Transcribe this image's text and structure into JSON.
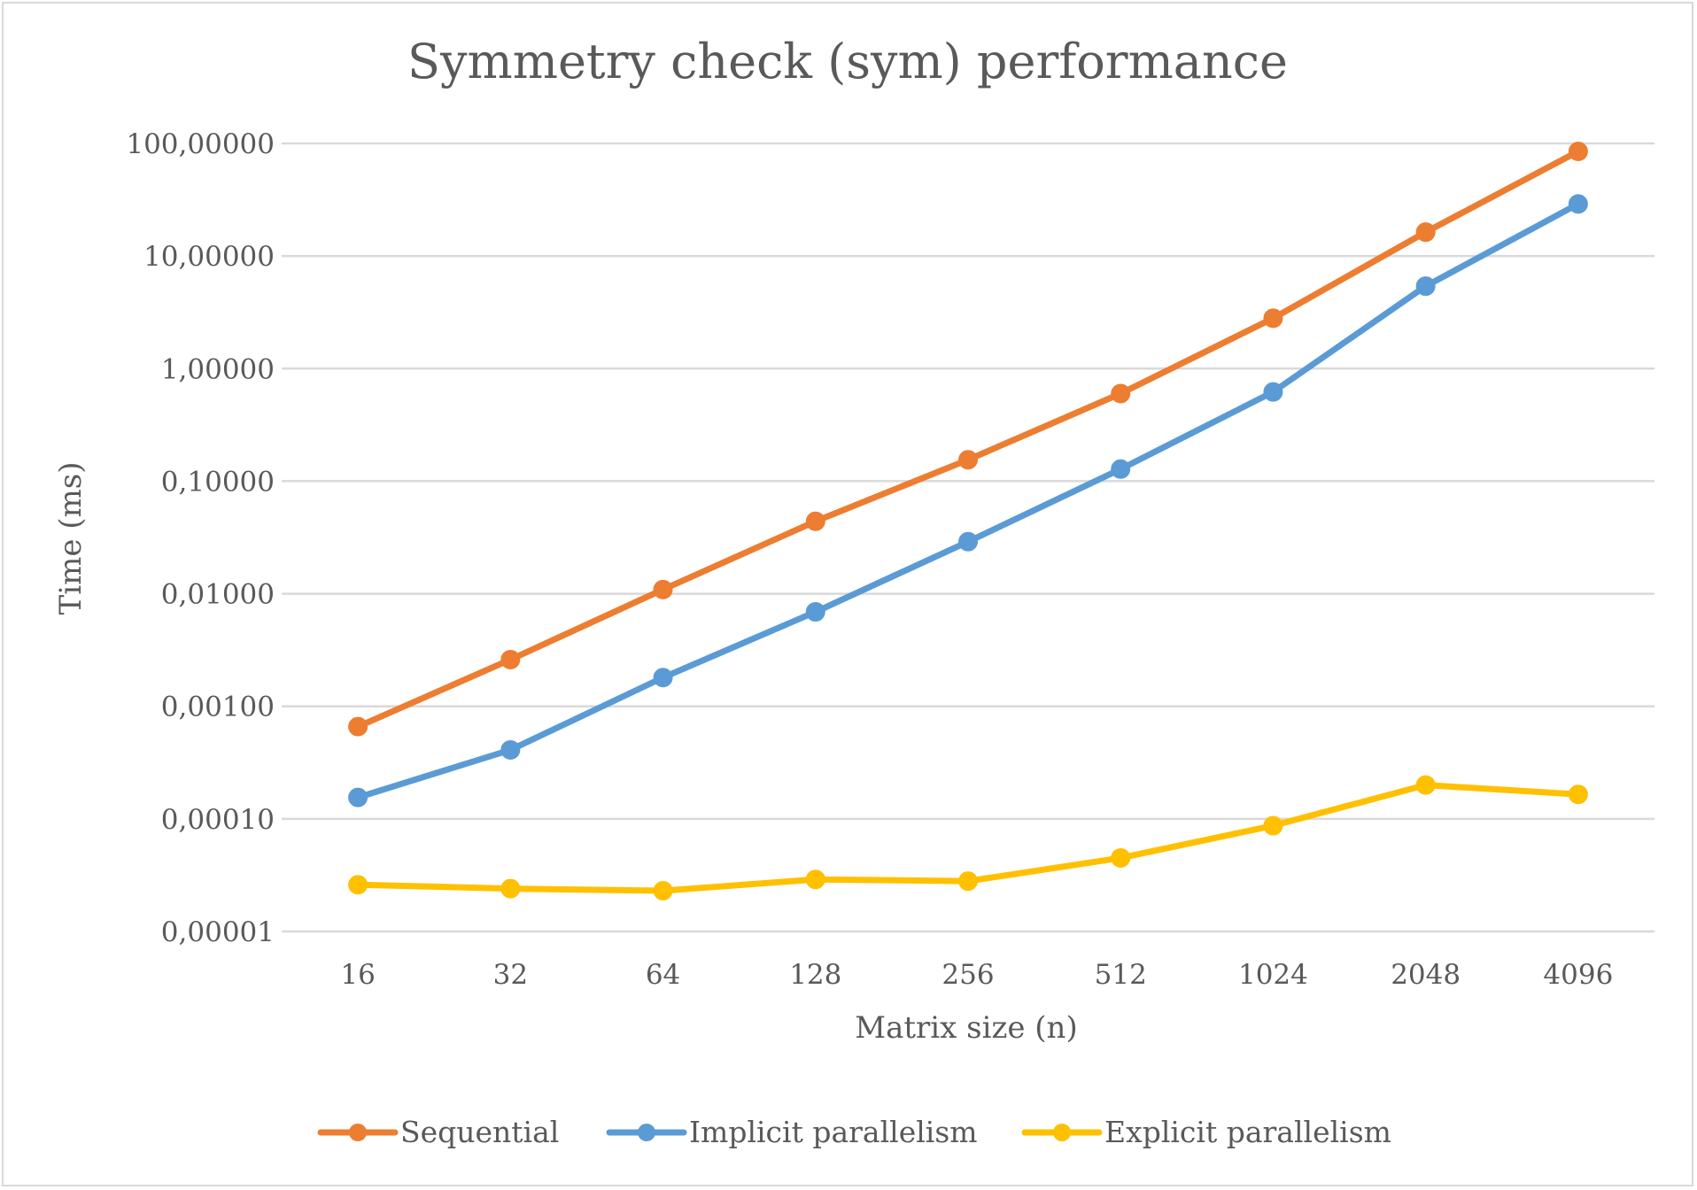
{
  "chart_data": {
    "type": "line",
    "title": "Symmetry check (sym) performance",
    "xlabel": "Matrix size (n)",
    "ylabel": "Time (ms)",
    "yscale": "log",
    "ylim": [
      1e-05,
      100
    ],
    "y_ticks": [
      100,
      10,
      1,
      0.1,
      0.01,
      0.001,
      0.0001,
      1e-05
    ],
    "y_tick_labels": [
      "100,00000",
      "10,00000",
      "1,00000",
      "0,10000",
      "0,01000",
      "0,00100",
      "0,00010",
      "0,00001"
    ],
    "categories": [
      "16",
      "32",
      "64",
      "128",
      "256",
      "512",
      "1024",
      "2048",
      "4096"
    ],
    "grid": true,
    "legend_position": "bottom",
    "series": [
      {
        "name": "Sequential",
        "color": "#ed7d31",
        "values": [
          0.00066,
          0.0026,
          0.0109,
          0.044,
          0.155,
          0.6,
          2.8,
          16.3,
          85
        ]
      },
      {
        "name": "Implicit parallelism",
        "color": "#5b9bd5",
        "values": [
          0.000155,
          0.00041,
          0.0018,
          0.0069,
          0.029,
          0.128,
          0.62,
          5.4,
          29
        ]
      },
      {
        "name": "Explicit parallelism",
        "color": "#ffc000",
        "values": [
          2.6e-05,
          2.4e-05,
          2.3e-05,
          2.9e-05,
          2.8e-05,
          4.5e-05,
          8.7e-05,
          0.0002,
          0.000165
        ]
      }
    ]
  }
}
